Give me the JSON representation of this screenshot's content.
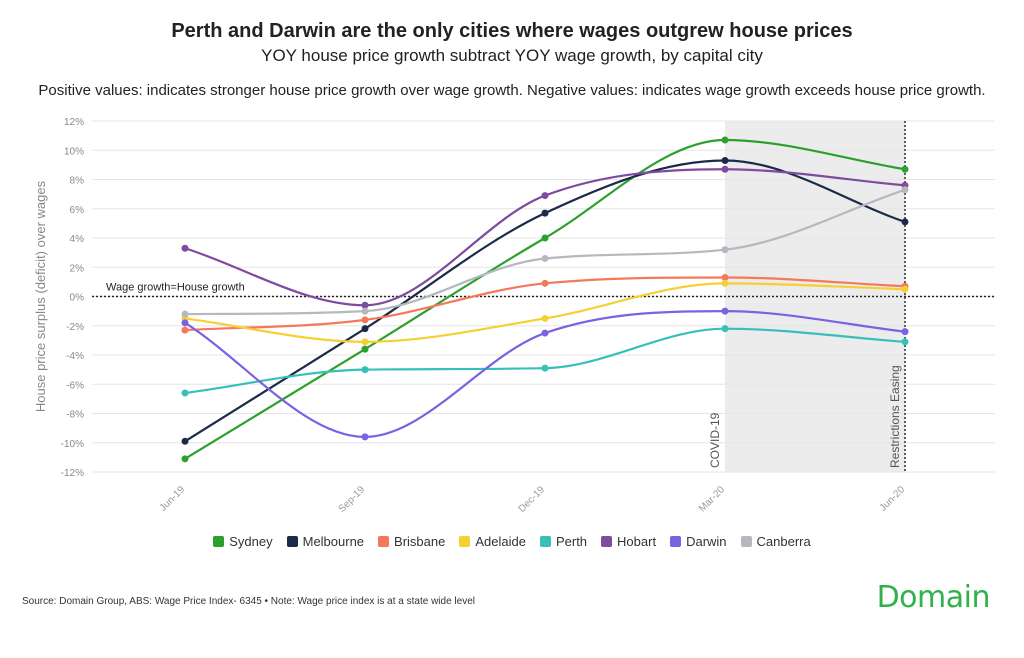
{
  "header": {
    "title": "Perth and Darwin are the only cities where wages outgrew house prices",
    "subtitle": "YOY house price growth subtract YOY wage growth, by capital city",
    "note": "Positive values: indicates stronger house price growth over wage growth. Negative values: indicates wage growth exceeds house price growth."
  },
  "footer": {
    "source": "Source: Domain Group, ABS: Wage Price Index- 6345 • Note: Wage price index is at a state wide level",
    "logo": "Domain"
  },
  "chart_data": {
    "type": "line",
    "title": "Perth and Darwin are the only cities where wages outgrew house prices",
    "subtitle": "YOY house price growth subtract YOY wage growth, by capital city",
    "ylabel": "House price surplus (deficit) over wages",
    "xlabel": "",
    "categories": [
      "Jun-19",
      "Sep-19",
      "Dec-19",
      "Mar-20",
      "Jun-20"
    ],
    "ylim": [
      -12,
      12
    ],
    "yticks": [
      -12,
      -10,
      -8,
      -6,
      -4,
      -2,
      0,
      2,
      4,
      6,
      8,
      10,
      12
    ],
    "ytick_labels": [
      "-12%",
      "-10%",
      "-8%",
      "-6%",
      "-4%",
      "-2%",
      "0%",
      "2%",
      "4%",
      "6%",
      "8%",
      "10%",
      "12%"
    ],
    "grid": true,
    "legend_position": "bottom",
    "reference_line": {
      "value": 0,
      "label": "Wage growth=House growth"
    },
    "shaded_region": {
      "from": "Mar-20",
      "to": "Jun-20"
    },
    "annotations": [
      {
        "at": "Mar-20",
        "label": "COVID-19"
      },
      {
        "at": "Jun-20",
        "label": "Restrictions Easing"
      }
    ],
    "series": [
      {
        "name": "Sydney",
        "color": "#2ca02c",
        "values": [
          -11.1,
          -3.6,
          4.0,
          10.7,
          8.7
        ]
      },
      {
        "name": "Melbourne",
        "color": "#1b2a47",
        "values": [
          -9.9,
          -2.2,
          5.7,
          9.3,
          5.1
        ]
      },
      {
        "name": "Brisbane",
        "color": "#f4795b",
        "values": [
          -2.3,
          -1.6,
          0.9,
          1.3,
          0.7
        ]
      },
      {
        "name": "Adelaide",
        "color": "#f5d033",
        "values": [
          -1.5,
          -3.1,
          -1.5,
          0.9,
          0.5
        ]
      },
      {
        "name": "Perth",
        "color": "#36c0b9",
        "values": [
          -6.6,
          -5.0,
          -4.9,
          -2.2,
          -3.1
        ]
      },
      {
        "name": "Hobart",
        "color": "#7e4b9e",
        "values": [
          3.3,
          -0.6,
          6.9,
          8.7,
          7.6
        ]
      },
      {
        "name": "Darwin",
        "color": "#7a62e0",
        "values": [
          -1.8,
          -9.6,
          -2.5,
          -1.0,
          -2.4
        ]
      },
      {
        "name": "Canberra",
        "color": "#b5b8bf",
        "values": [
          -1.2,
          -1.0,
          2.6,
          3.2,
          7.3
        ]
      }
    ]
  }
}
